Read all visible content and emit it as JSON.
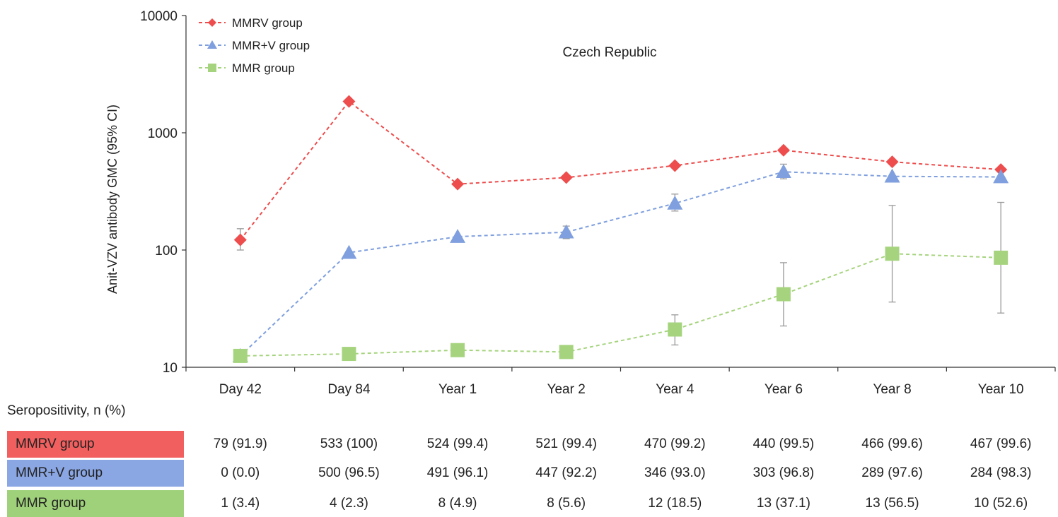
{
  "chart_data": {
    "type": "line",
    "title": "Czech Republic",
    "ylabel": "Anit-VZV antibody GMC (95% CI)",
    "xlabel": "",
    "y_scale": "log",
    "ylim": [
      10,
      10000
    ],
    "y_ticks": [
      "10",
      "100",
      "1000",
      "10000"
    ],
    "categories": [
      "Day 42",
      "Day 84",
      "Year 1",
      "Year 2",
      "Year 4",
      "Year 6",
      "Year 8",
      "Year 10"
    ],
    "legend_position": "top-left",
    "series": [
      {
        "name": "MMRV group",
        "color": "#ee4d4d",
        "marker": "diamond",
        "values": [
          122,
          1850,
          365,
          415,
          525,
          710,
          565,
          485
        ],
        "ci_lower": [
          100,
          null,
          null,
          null,
          null,
          null,
          null,
          null
        ],
        "ci_upper": [
          152,
          null,
          null,
          null,
          null,
          null,
          null,
          null
        ]
      },
      {
        "name": "MMR+V group",
        "color": "#7f9fde",
        "marker": "triangle",
        "values": [
          12.5,
          95,
          130,
          142,
          250,
          465,
          425,
          420
        ],
        "ci_lower": [
          null,
          null,
          null,
          125,
          215,
          405,
          null,
          null
        ],
        "ci_upper": [
          null,
          null,
          null,
          160,
          300,
          540,
          null,
          null
        ]
      },
      {
        "name": "MMR group",
        "color": "#a6d47e",
        "marker": "square",
        "values": [
          12.5,
          13,
          14,
          13.5,
          21,
          42,
          93,
          86
        ],
        "ci_lower": [
          null,
          null,
          null,
          null,
          15.5,
          22.5,
          36,
          29
        ],
        "ci_upper": [
          null,
          null,
          null,
          null,
          28,
          78,
          240,
          255
        ]
      }
    ]
  },
  "table": {
    "header": "Seropositivity, n (%)",
    "rows": [
      {
        "label": "MMRV group",
        "color": "#f25f5f",
        "cells": [
          "79 (91.9)",
          "533 (100)",
          "524 (99.4)",
          "521 (99.4)",
          "470 (99.2)",
          "440 (99.5)",
          "466 (99.6)",
          "467 (99.6)"
        ]
      },
      {
        "label": "MMR+V group",
        "color": "#8aa6e3",
        "cells": [
          "0 (0.0)",
          "500 (96.5)",
          "491 (96.1)",
          "447 (92.2)",
          "346 (93.0)",
          "303 (96.8)",
          "289 (97.6)",
          "284 (98.3)"
        ]
      },
      {
        "label": "MMR group",
        "color": "#9fd17a",
        "cells": [
          "1 (3.4)",
          "4 (2.3)",
          "8 (4.9)",
          "8 (5.6)",
          "12 (18.5)",
          "13 (37.1)",
          "13 (56.5)",
          "10 (52.6)"
        ]
      }
    ]
  }
}
